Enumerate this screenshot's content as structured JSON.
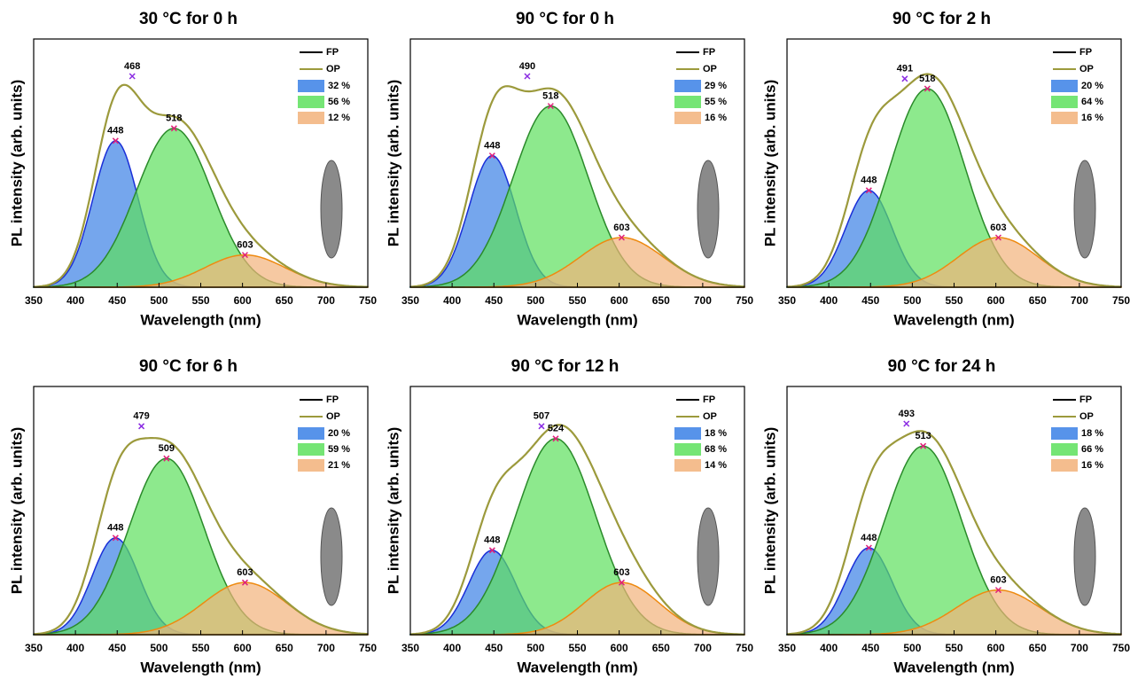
{
  "chart_data": [
    {
      "type": "gaussian_fit",
      "title": "30 °C for 0 h",
      "xlabel": "Wavelength (nm)",
      "ylabel": "PL intensity (arb. units)",
      "xlim": [
        350,
        750
      ],
      "xticks": [
        350,
        400,
        450,
        500,
        550,
        600,
        650,
        700,
        750
      ],
      "ylim": [
        0,
        1
      ],
      "series": [
        {
          "name": "FP",
          "color": "#000000"
        },
        {
          "name": "OP",
          "color": "#9c9a3c"
        }
      ],
      "peaks": [
        {
          "name": "32 %",
          "color": "#3a80e6",
          "edge": "#1a2fd8",
          "center": 448,
          "height": 0.59,
          "sigma": 27
        },
        {
          "name": "56 %",
          "color": "#5de05d",
          "edge": "#2a8a2a",
          "center": 518,
          "height": 0.64,
          "sigma": 45
        },
        {
          "name": "12 %",
          "color": "#f2b27a",
          "edge": "#ee8a10",
          "center": 603,
          "height": 0.13,
          "sigma": 48
        }
      ],
      "max": {
        "value": 468,
        "height": 0.85
      }
    },
    {
      "type": "gaussian_fit",
      "title": "90 °C for 0 h",
      "xlabel": "Wavelength (nm)",
      "ylabel": "PL intensity (arb. units)",
      "xlim": [
        350,
        750
      ],
      "xticks": [
        350,
        400,
        450,
        500,
        550,
        600,
        650,
        700,
        750
      ],
      "ylim": [
        0,
        1
      ],
      "series": [
        {
          "name": "FP",
          "color": "#000000"
        },
        {
          "name": "OP",
          "color": "#9c9a3c"
        }
      ],
      "peaks": [
        {
          "name": "29 %",
          "color": "#3a80e6",
          "edge": "#1a2fd8",
          "center": 448,
          "height": 0.53,
          "sigma": 28
        },
        {
          "name": "55 %",
          "color": "#5de05d",
          "edge": "#2a8a2a",
          "center": 518,
          "height": 0.73,
          "sigma": 45
        },
        {
          "name": "16 %",
          "color": "#f2b27a",
          "edge": "#ee8a10",
          "center": 603,
          "height": 0.2,
          "sigma": 50
        }
      ],
      "max": {
        "value": 490,
        "height": 0.85
      }
    },
    {
      "type": "gaussian_fit",
      "title": "90 °C for 2 h",
      "xlabel": "Wavelength (nm)",
      "ylabel": "PL intensity (arb. units)",
      "xlim": [
        350,
        750
      ],
      "xticks": [
        350,
        400,
        450,
        500,
        550,
        600,
        650,
        700,
        750
      ],
      "ylim": [
        0,
        1
      ],
      "series": [
        {
          "name": "FP",
          "color": "#000000"
        },
        {
          "name": "OP",
          "color": "#9c9a3c"
        }
      ],
      "peaks": [
        {
          "name": "20 %",
          "color": "#3a80e6",
          "edge": "#1a2fd8",
          "center": 448,
          "height": 0.39,
          "sigma": 28
        },
        {
          "name": "64 %",
          "color": "#5de05d",
          "edge": "#2a8a2a",
          "center": 518,
          "height": 0.8,
          "sigma": 45
        },
        {
          "name": "16 %",
          "color": "#f2b27a",
          "edge": "#ee8a10",
          "center": 603,
          "height": 0.2,
          "sigma": 48
        }
      ],
      "max": {
        "value": 491,
        "height": 0.84
      }
    },
    {
      "type": "gaussian_fit",
      "title": "90 °C for 6 h",
      "xlabel": "Wavelength (nm)",
      "ylabel": "PL intensity (arb. units)",
      "xlim": [
        350,
        750
      ],
      "xticks": [
        350,
        400,
        450,
        500,
        550,
        600,
        650,
        700,
        750
      ],
      "ylim": [
        0,
        1
      ],
      "series": [
        {
          "name": "FP",
          "color": "#000000"
        },
        {
          "name": "OP",
          "color": "#9c9a3c"
        }
      ],
      "peaks": [
        {
          "name": "20 %",
          "color": "#3a80e6",
          "edge": "#1a2fd8",
          "center": 448,
          "height": 0.39,
          "sigma": 28
        },
        {
          "name": "59 %",
          "color": "#5de05d",
          "edge": "#2a8a2a",
          "center": 509,
          "height": 0.71,
          "sigma": 45
        },
        {
          "name": "21 %",
          "color": "#f2b27a",
          "edge": "#ee8a10",
          "center": 603,
          "height": 0.21,
          "sigma": 50
        }
      ],
      "max": {
        "value": 479,
        "height": 0.84
      }
    },
    {
      "type": "gaussian_fit",
      "title": "90 °C for 12 h",
      "xlabel": "Wavelength (nm)",
      "ylabel": "PL intensity (arb. units)",
      "xlim": [
        350,
        750
      ],
      "xticks": [
        350,
        400,
        450,
        500,
        550,
        600,
        650,
        700,
        750
      ],
      "ylim": [
        0,
        1
      ],
      "series": [
        {
          "name": "FP",
          "color": "#000000"
        },
        {
          "name": "OP",
          "color": "#9c9a3c"
        }
      ],
      "peaks": [
        {
          "name": "18 %",
          "color": "#3a80e6",
          "edge": "#1a2fd8",
          "center": 448,
          "height": 0.34,
          "sigma": 28
        },
        {
          "name": "68 %",
          "color": "#5de05d",
          "edge": "#2a8a2a",
          "center": 524,
          "height": 0.79,
          "sigma": 48
        },
        {
          "name": "14 %",
          "color": "#f2b27a",
          "edge": "#ee8a10",
          "center": 603,
          "height": 0.21,
          "sigma": 45
        }
      ],
      "max": {
        "value": 507,
        "height": 0.84
      }
    },
    {
      "type": "gaussian_fit",
      "title": "90 °C for 24 h",
      "xlabel": "Wavelength (nm)",
      "ylabel": "PL intensity (arb. units)",
      "xlim": [
        350,
        750
      ],
      "xticks": [
        350,
        400,
        450,
        500,
        550,
        600,
        650,
        700,
        750
      ],
      "ylim": [
        0,
        1
      ],
      "series": [
        {
          "name": "FP",
          "color": "#000000"
        },
        {
          "name": "OP",
          "color": "#9c9a3c"
        }
      ],
      "peaks": [
        {
          "name": "18 %",
          "color": "#3a80e6",
          "edge": "#1a2fd8",
          "center": 448,
          "height": 0.35,
          "sigma": 28
        },
        {
          "name": "66 %",
          "color": "#5de05d",
          "edge": "#2a8a2a",
          "center": 513,
          "height": 0.76,
          "sigma": 46
        },
        {
          "name": "16 %",
          "color": "#f2b27a",
          "edge": "#ee8a10",
          "center": 603,
          "height": 0.18,
          "sigma": 50
        }
      ],
      "max": {
        "value": 493,
        "height": 0.85
      }
    }
  ]
}
